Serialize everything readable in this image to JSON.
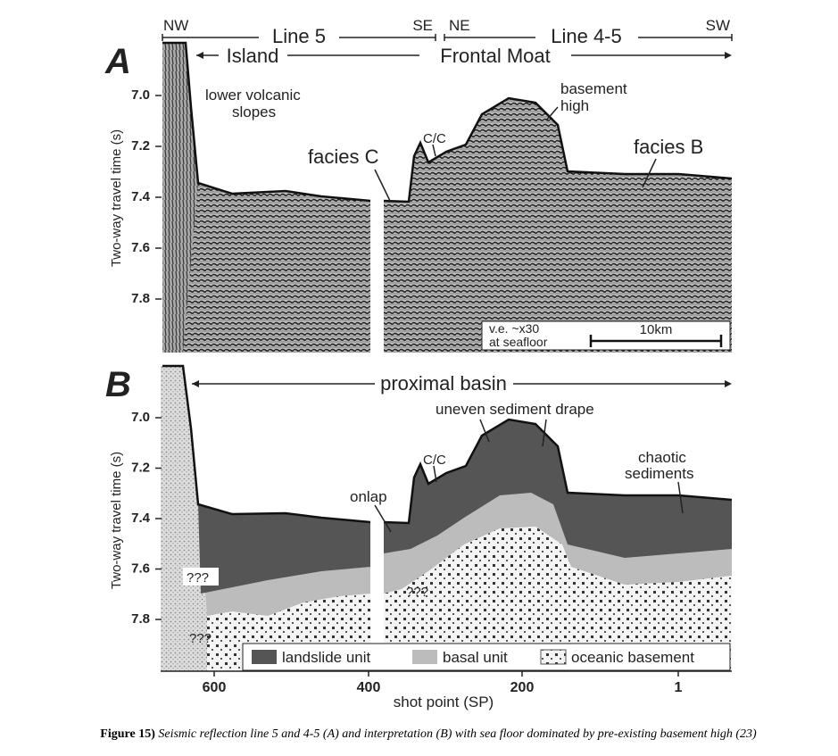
{
  "panel_a": {
    "label": "A",
    "line_left": {
      "west": "NW",
      "title": "Line 5",
      "east": "SE"
    },
    "line_right": {
      "west": "NE",
      "title": "Line 4-5",
      "east": "SW"
    },
    "island": "Island",
    "frontal_moat": "Frontal Moat",
    "lower_slopes": [
      "lower volcanic",
      "slopes"
    ],
    "basement_high": [
      "basement",
      "high"
    ],
    "cc": "C/C",
    "facies_c": "facies C",
    "facies_b": "facies B",
    "scale_box": [
      "v.e. ~x30",
      "at seafloor"
    ],
    "scale_bar": "10km",
    "y_label": "Two-way travel time (s)",
    "y_ticks": [
      "7.0",
      "7.2",
      "7.4",
      "7.6",
      "7.8"
    ]
  },
  "panel_b": {
    "label": "B",
    "proximal_basin": "proximal basin",
    "drape": "uneven sediment drape",
    "cc": "C/C",
    "onlap": "onlap",
    "chaotic": [
      "chaotic",
      "sediments"
    ],
    "unknown": [
      "???",
      "???",
      "???"
    ],
    "legend": [
      "landslide unit",
      "basal unit",
      "oceanic basement"
    ],
    "y_label": "Two-way travel time (s)",
    "y_ticks": [
      "7.0",
      "7.2",
      "7.4",
      "7.6",
      "7.8"
    ],
    "x_ticks": [
      "600",
      "400",
      "200",
      "1"
    ],
    "x_label": "shot point (SP)"
  },
  "caption": {
    "label": "Figure 15)",
    "text": "Seismic reflection line 5 and 4-5 (A) and interpretation (B) with sea floor dominated by pre-existing basement high (23)"
  }
}
